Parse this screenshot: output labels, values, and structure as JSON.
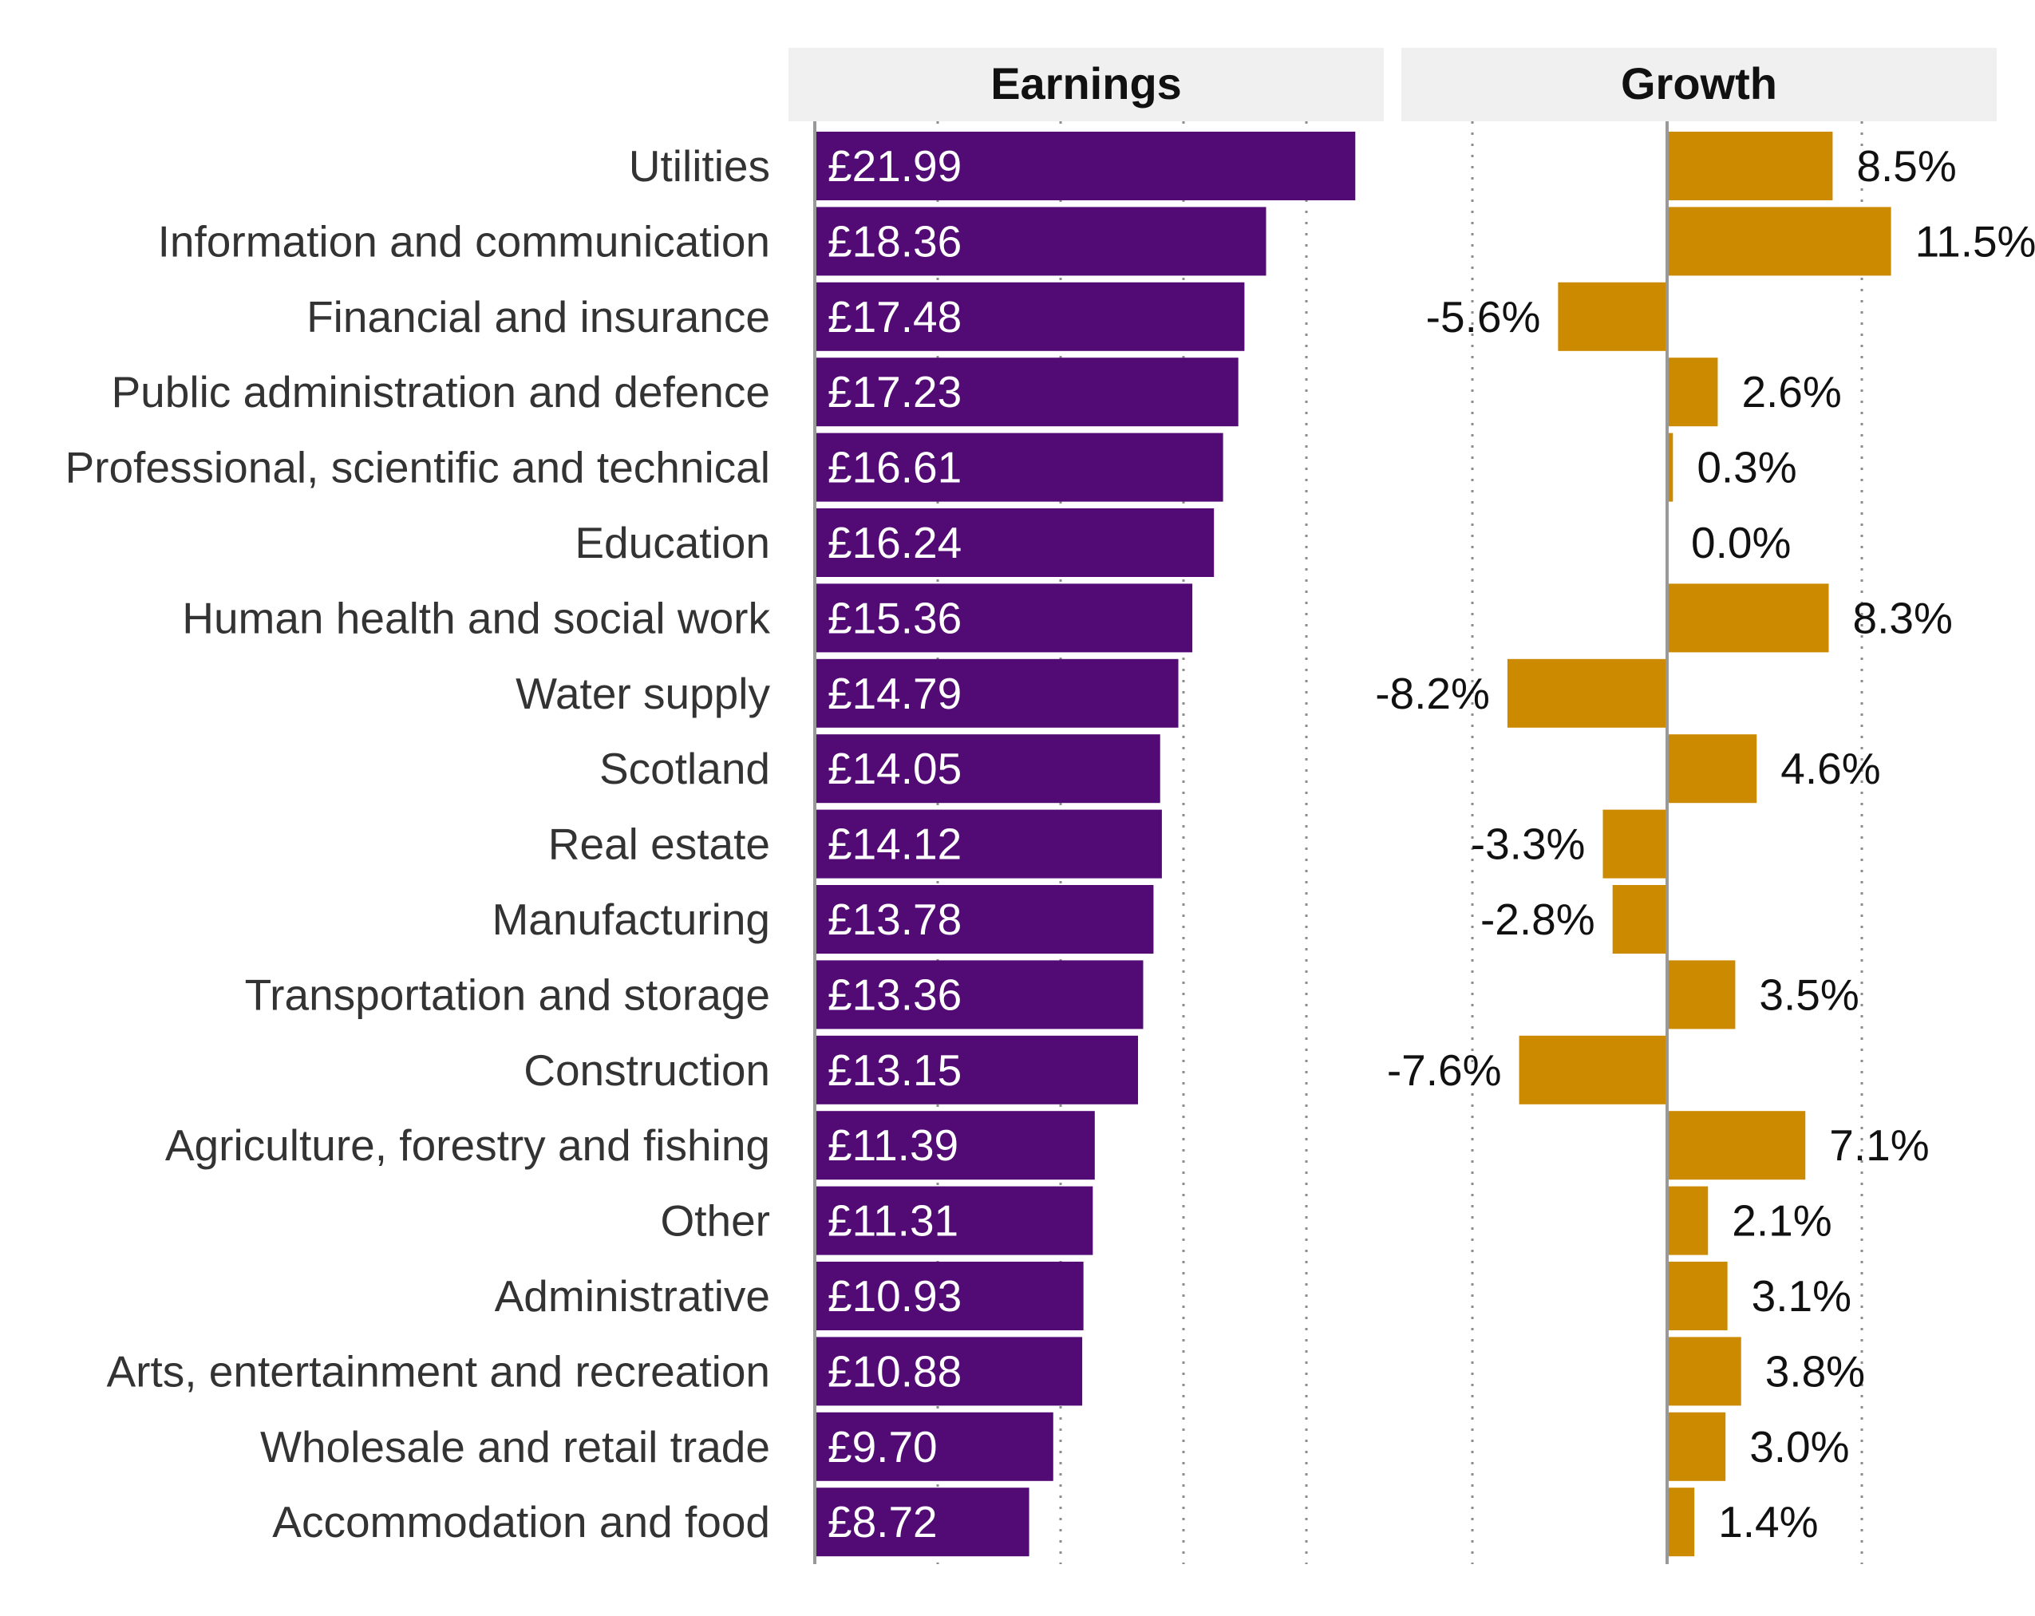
{
  "chart_data": {
    "type": "bar",
    "orientation": "horizontal",
    "panels": [
      {
        "name": "Earnings",
        "title": "Earnings",
        "unit": "£",
        "xlim": [
          0,
          23
        ],
        "gridlines": [
          5,
          10,
          15,
          20
        ],
        "color": "#520A74",
        "label_color": "#ffffff"
      },
      {
        "name": "Growth",
        "title": "Growth",
        "unit": "%",
        "xlim": [
          -13.5,
          16.8
        ],
        "gridlines": [
          -10,
          10
        ],
        "color": "#CC8A00",
        "label_color": "#111111"
      }
    ],
    "categories": [
      "Utilities",
      "Information and communication",
      "Financial and insurance",
      "Public administration and defence",
      "Professional, scientific and technical",
      "Education",
      "Human health and social work",
      "Water supply",
      "Scotland",
      "Real estate",
      "Manufacturing",
      "Transportation and storage",
      "Construction",
      "Agriculture, forestry and fishing",
      "Other",
      "Administrative",
      "Arts, entertainment and recreation",
      "Wholesale and retail trade",
      "Accommodation and food"
    ],
    "series": [
      {
        "name": "Earnings",
        "values": [
          21.99,
          18.36,
          17.48,
          17.23,
          16.61,
          16.24,
          15.36,
          14.79,
          14.05,
          14.12,
          13.78,
          13.36,
          13.15,
          11.39,
          11.31,
          10.93,
          10.88,
          9.7,
          8.72
        ],
        "labels": [
          "£21.99",
          "£18.36",
          "£17.48",
          "£17.23",
          "£16.61",
          "£16.24",
          "£15.36",
          "£14.79",
          "£14.05",
          "£14.12",
          "£13.78",
          "£13.36",
          "£13.15",
          "£11.39",
          "£11.31",
          "£10.93",
          "£10.88",
          "£9.70",
          "£8.72"
        ]
      },
      {
        "name": "Growth",
        "values": [
          8.5,
          11.5,
          -5.6,
          2.6,
          0.3,
          0.0,
          8.3,
          -8.2,
          4.6,
          -3.3,
          -2.8,
          3.5,
          -7.6,
          7.1,
          2.1,
          3.1,
          3.8,
          3.0,
          1.4
        ],
        "labels": [
          "8.5%",
          "11.5%",
          "-5.6%",
          "2.6%",
          "0.3%",
          "0.0%",
          "8.3%",
          "-8.2%",
          "4.6%",
          "-3.3%",
          "-2.8%",
          "3.5%",
          "-7.6%",
          "7.1%",
          "2.1%",
          "3.1%",
          "3.8%",
          "3.0%",
          "1.4%"
        ]
      }
    ]
  }
}
